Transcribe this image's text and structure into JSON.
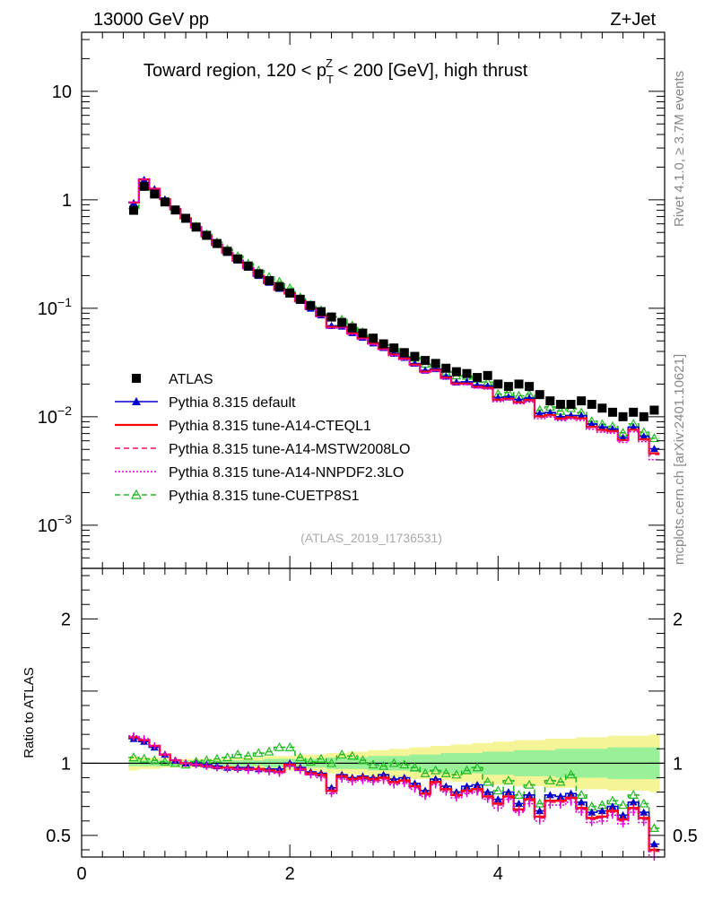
{
  "header": {
    "energy_label": "13000 GeV pp",
    "process_label": "Z+Jet",
    "title_prefix": "Toward region, 120 < p",
    "title_sub": "T",
    "title_sup": "Z",
    "title_suffix": " < 200 [GeV], high thrust",
    "right_label_top": "Rivet 4.1.0, ≥ 3.7M events",
    "right_label_bottom": "mcplots.cern.ch [arXiv:2401.10621]",
    "analysis_id": "(ATLAS_2019_I1736531)"
  },
  "legend": [
    {
      "label": "ATLAS",
      "color": "#000000",
      "style": "square"
    },
    {
      "label": "Pythia 8.315 default",
      "color": "#0000cc",
      "style": "line-triangle"
    },
    {
      "label": "Pythia 8.315 tune-A14-CTEQL1",
      "color": "#ff0000",
      "style": "solid"
    },
    {
      "label": "Pythia 8.315 tune-A14-MSTW2008LO",
      "color": "#ee1166",
      "style": "dashed"
    },
    {
      "label": "Pythia 8.315 tune-A14-NNPDF2.3LO",
      "color": "#dd00dd",
      "style": "dotted"
    },
    {
      "label": "Pythia 8.315 tune-CUETP8S1",
      "color": "#22bb22",
      "style": "dashed-open-triangle"
    }
  ],
  "chart_data": {
    "type": "line",
    "x": [
      0.5,
      0.6,
      0.7,
      0.8,
      0.9,
      1.0,
      1.1,
      1.2,
      1.3,
      1.4,
      1.5,
      1.6,
      1.7,
      1.8,
      1.9,
      2.0,
      2.1,
      2.2,
      2.3,
      2.4,
      2.5,
      2.6,
      2.7,
      2.8,
      2.9,
      3.0,
      3.1,
      3.2,
      3.3,
      3.4,
      3.5,
      3.6,
      3.7,
      3.8,
      3.9,
      4.0,
      4.1,
      4.2,
      4.3,
      4.4,
      4.5,
      4.6,
      4.7,
      4.8,
      4.9,
      5.0,
      5.1,
      5.2,
      5.3,
      5.4,
      5.5
    ],
    "series": [
      {
        "name": "ATLAS",
        "values": [
          0.8,
          1.33,
          1.13,
          0.955,
          0.805,
          0.675,
          0.56,
          0.47,
          0.395,
          0.335,
          0.285,
          0.245,
          0.208,
          0.18,
          0.158,
          0.138,
          0.121,
          0.106,
          0.093,
          0.083,
          0.074,
          0.066,
          0.059,
          0.053,
          0.047,
          0.043,
          0.039,
          0.036,
          0.033,
          0.031,
          0.028,
          0.026,
          0.025,
          0.023,
          0.024,
          0.02,
          0.019,
          0.02,
          0.019,
          0.016,
          0.014,
          0.013,
          0.013,
          0.014,
          0.013,
          0.012,
          0.011,
          0.01,
          0.011,
          0.01,
          0.0115
        ]
      },
      {
        "name": "Pythia 8.315 default",
        "ratio": [
          1.17,
          1.15,
          1.11,
          1.06,
          1.02,
          1.0,
          1.0,
          0.99,
          0.98,
          0.97,
          0.97,
          0.97,
          0.96,
          0.96,
          0.96,
          1.0,
          0.97,
          0.94,
          0.93,
          0.83,
          0.92,
          0.9,
          0.91,
          0.9,
          0.92,
          0.89,
          0.9,
          0.86,
          0.81,
          0.89,
          0.84,
          0.8,
          0.84,
          0.85,
          0.8,
          0.75,
          0.8,
          0.72,
          0.78,
          0.67,
          0.78,
          0.77,
          0.79,
          0.73,
          0.66,
          0.67,
          0.7,
          0.64,
          0.73,
          0.66,
          0.44
        ]
      },
      {
        "name": "Pythia 8.315 tune-A14-CTEQL1",
        "ratio": [
          1.18,
          1.16,
          1.12,
          1.06,
          1.02,
          1.0,
          0.99,
          0.98,
          0.97,
          0.97,
          0.96,
          0.96,
          0.96,
          0.95,
          0.94,
          0.99,
          0.96,
          0.93,
          0.92,
          0.81,
          0.91,
          0.89,
          0.9,
          0.89,
          0.9,
          0.87,
          0.88,
          0.84,
          0.79,
          0.87,
          0.82,
          0.78,
          0.81,
          0.82,
          0.77,
          0.72,
          0.77,
          0.68,
          0.75,
          0.63,
          0.74,
          0.74,
          0.76,
          0.69,
          0.62,
          0.63,
          0.67,
          0.61,
          0.69,
          0.62,
          0.4
        ]
      },
      {
        "name": "Pythia 8.315 tune-A14-MSTW2008LO",
        "ratio": [
          1.18,
          1.16,
          1.12,
          1.06,
          1.02,
          1.0,
          0.99,
          0.98,
          0.97,
          0.97,
          0.96,
          0.96,
          0.95,
          0.95,
          0.94,
          0.98,
          0.96,
          0.92,
          0.91,
          0.8,
          0.9,
          0.88,
          0.89,
          0.88,
          0.89,
          0.86,
          0.87,
          0.83,
          0.78,
          0.86,
          0.81,
          0.77,
          0.8,
          0.81,
          0.76,
          0.71,
          0.76,
          0.67,
          0.74,
          0.62,
          0.73,
          0.73,
          0.75,
          0.68,
          0.61,
          0.62,
          0.66,
          0.6,
          0.68,
          0.61,
          0.39
        ]
      },
      {
        "name": "Pythia 8.315 tune-A14-NNPDF2.3LO",
        "ratio": [
          1.19,
          1.17,
          1.12,
          1.06,
          1.02,
          1.0,
          0.99,
          0.98,
          0.97,
          0.96,
          0.96,
          0.95,
          0.95,
          0.94,
          0.93,
          0.98,
          0.95,
          0.92,
          0.9,
          0.79,
          0.89,
          0.87,
          0.88,
          0.87,
          0.88,
          0.85,
          0.86,
          0.82,
          0.77,
          0.85,
          0.8,
          0.76,
          0.79,
          0.8,
          0.75,
          0.69,
          0.75,
          0.66,
          0.72,
          0.6,
          0.71,
          0.71,
          0.73,
          0.66,
          0.59,
          0.6,
          0.64,
          0.58,
          0.66,
          0.59,
          0.35
        ]
      },
      {
        "name": "Pythia 8.315 tune-CUETP8S1",
        "ratio": [
          1.04,
          1.03,
          1.02,
          1.01,
          1.0,
          0.99,
          1.01,
          1.02,
          1.03,
          1.04,
          1.06,
          1.05,
          1.07,
          1.08,
          1.11,
          1.11,
          1.04,
          1.01,
          1.03,
          1.0,
          1.06,
          1.05,
          1.02,
          0.99,
          0.98,
          1.0,
          0.99,
          0.97,
          0.93,
          0.95,
          0.93,
          0.92,
          0.95,
          0.97,
          0.87,
          0.81,
          0.88,
          0.78,
          0.85,
          0.72,
          0.88,
          0.87,
          0.92,
          0.78,
          0.7,
          0.71,
          0.74,
          0.71,
          0.78,
          0.72,
          0.55
        ]
      }
    ],
    "band_inner_halfwidth": [
      0.02,
      0.02,
      0.02,
      0.02,
      0.02,
      0.02,
      0.02,
      0.02,
      0.02,
      0.02,
      0.02,
      0.02,
      0.02,
      0.03,
      0.03,
      0.03,
      0.03,
      0.03,
      0.03,
      0.04,
      0.04,
      0.04,
      0.04,
      0.05,
      0.05,
      0.05,
      0.05,
      0.06,
      0.06,
      0.06,
      0.07,
      0.07,
      0.07,
      0.07,
      0.08,
      0.08,
      0.08,
      0.09,
      0.09,
      0.09,
      0.09,
      0.1,
      0.1,
      0.1,
      0.1,
      0.1,
      0.11,
      0.11,
      0.11,
      0.11,
      0.11
    ],
    "band_outer_halfwidth": [
      0.05,
      0.04,
      0.04,
      0.03,
      0.03,
      0.03,
      0.03,
      0.03,
      0.03,
      0.03,
      0.04,
      0.04,
      0.04,
      0.05,
      0.05,
      0.05,
      0.06,
      0.06,
      0.06,
      0.07,
      0.07,
      0.08,
      0.08,
      0.09,
      0.09,
      0.1,
      0.1,
      0.11,
      0.11,
      0.12,
      0.12,
      0.13,
      0.13,
      0.14,
      0.14,
      0.15,
      0.15,
      0.16,
      0.16,
      0.16,
      0.17,
      0.17,
      0.17,
      0.18,
      0.18,
      0.18,
      0.19,
      0.19,
      0.19,
      0.19,
      0.2
    ],
    "band_colors": {
      "inner": "#99f099",
      "outer": "#f5f598"
    },
    "xlim": [
      0,
      5.6
    ],
    "ylim_main": [
      0.0004,
      35
    ],
    "ylim_ratio": [
      0.35,
      2.35
    ],
    "yscale_main": "log",
    "x_ticks": [
      0,
      2,
      4
    ],
    "x_tick_labels": [
      "0",
      "2",
      "4"
    ],
    "y_main_ticks": [
      10,
      1,
      0.1,
      0.01,
      0.001
    ],
    "y_main_labels": [
      {
        "base": "10",
        "exp": ""
      },
      {
        "base": "1",
        "exp": ""
      },
      {
        "base": "10",
        "exp": "−1"
      },
      {
        "base": "10",
        "exp": "−2"
      },
      {
        "base": "10",
        "exp": "−3"
      }
    ],
    "y_ratio_ticks": [
      2,
      1,
      0.5
    ],
    "y_ratio_labels": [
      "2",
      "1",
      "0.5"
    ],
    "ylabel_ratio": "Ratio to ATLAS",
    "legend_position": "lower-left"
  }
}
